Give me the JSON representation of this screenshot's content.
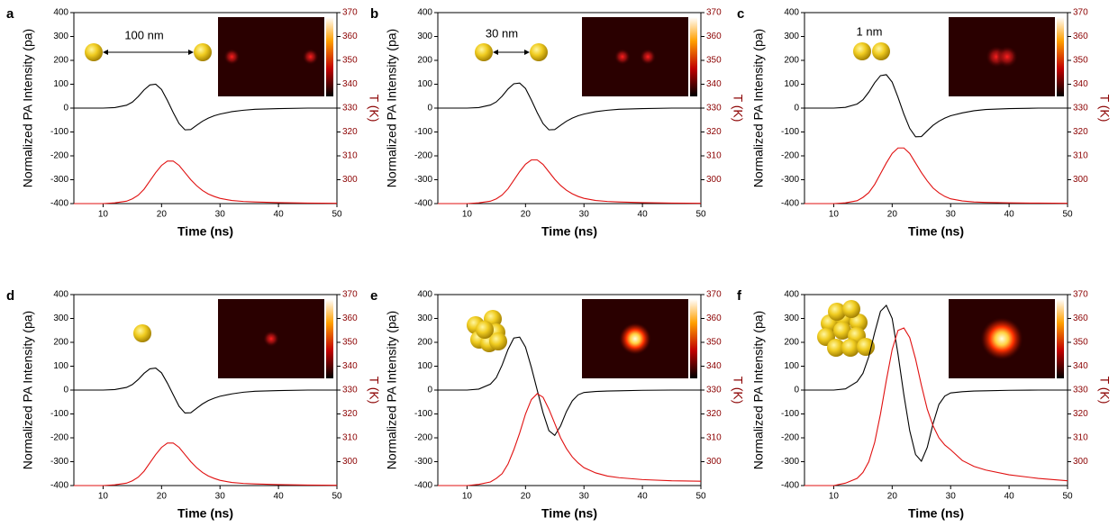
{
  "chart_data": [
    {
      "type": "line",
      "panel": "a",
      "xlabel": "Time (ns)",
      "ylabel": "Normalized PA Intensity (pa)",
      "y2label": "T (K)",
      "annotation": "100 nm",
      "x": [
        5,
        8,
        10,
        12,
        14,
        15,
        16,
        17,
        18,
        19,
        20,
        21,
        22,
        23,
        24,
        25,
        26,
        27,
        28,
        29,
        30,
        32,
        34,
        36,
        40,
        45,
        50
      ],
      "xlim": [
        5,
        50
      ],
      "xticks": [
        10,
        20,
        30,
        40,
        50
      ],
      "ylim": [
        -400,
        400
      ],
      "yticks": [
        -400,
        -300,
        -200,
        -100,
        0,
        100,
        200,
        300,
        400
      ],
      "y2lim": [
        290,
        370
      ],
      "y2ticks": [
        300,
        310,
        320,
        330,
        340,
        350,
        360,
        370
      ],
      "series": [
        {
          "color": "#000000",
          "values": [
            0,
            0,
            0,
            2,
            12,
            25,
            48,
            76,
            97,
            100,
            78,
            32,
            -19,
            -65,
            -91,
            -90,
            -72,
            -55,
            -42,
            -32,
            -25,
            -15,
            -9,
            -5,
            -2,
            0,
            0
          ]
        },
        {
          "color": "#e01010",
          "axis": "y2",
          "values": [
            290,
            290,
            290,
            290.3,
            291,
            292,
            293.5,
            296,
            299.5,
            303,
            306,
            307.8,
            307.8,
            306,
            303,
            300,
            297.5,
            295.5,
            294,
            293,
            292.2,
            291.3,
            290.9,
            290.7,
            290.4,
            290.2,
            290.1
          ]
        }
      ]
    },
    {
      "type": "line",
      "panel": "b",
      "xlabel": "Time (ns)",
      "ylabel": "Normalized PA Intensity (pa)",
      "y2label": "T (K)",
      "annotation": "30 nm",
      "x": [
        5,
        8,
        10,
        12,
        14,
        15,
        16,
        17,
        18,
        19,
        20,
        21,
        22,
        23,
        24,
        25,
        26,
        27,
        28,
        29,
        30,
        32,
        34,
        36,
        40,
        45,
        50
      ],
      "xlim": [
        5,
        50
      ],
      "xticks": [
        10,
        20,
        30,
        40,
        50
      ],
      "ylim": [
        -400,
        400
      ],
      "yticks": [
        -400,
        -300,
        -200,
        -100,
        0,
        100,
        200,
        300,
        400
      ],
      "y2lim": [
        290,
        370
      ],
      "y2ticks": [
        300,
        310,
        320,
        330,
        340,
        350,
        360,
        370
      ],
      "series": [
        {
          "color": "#000000",
          "values": [
            0,
            0,
            0,
            2,
            13,
            26,
            50,
            80,
            102,
            105,
            82,
            34,
            -19,
            -65,
            -91,
            -90,
            -72,
            -55,
            -42,
            -32,
            -25,
            -15,
            -9,
            -5,
            -2,
            0,
            0
          ]
        },
        {
          "color": "#e01010",
          "axis": "y2",
          "values": [
            290,
            290,
            290,
            290.3,
            291,
            292,
            293.6,
            296.2,
            299.8,
            303.4,
            306.5,
            308.3,
            308.3,
            306.4,
            303.3,
            300.2,
            297.6,
            295.6,
            294.1,
            293,
            292.2,
            291.3,
            290.9,
            290.7,
            290.4,
            290.2,
            290.1
          ]
        }
      ]
    },
    {
      "type": "line",
      "panel": "c",
      "xlabel": "Time (ns)",
      "ylabel": "Normalized PA Intensity (pa)",
      "y2label": "T (K)",
      "annotation": "1 nm",
      "x": [
        5,
        8,
        10,
        12,
        14,
        15,
        16,
        17,
        18,
        19,
        20,
        21,
        22,
        23,
        24,
        25,
        26,
        27,
        28,
        29,
        30,
        32,
        34,
        36,
        40,
        45,
        50
      ],
      "xlim": [
        5,
        50
      ],
      "xticks": [
        10,
        20,
        30,
        40,
        50
      ],
      "ylim": [
        -400,
        400
      ],
      "yticks": [
        -400,
        -300,
        -200,
        -100,
        0,
        100,
        200,
        300,
        400
      ],
      "y2lim": [
        290,
        370
      ],
      "y2ticks": [
        300,
        310,
        320,
        330,
        340,
        350,
        360,
        370
      ],
      "series": [
        {
          "color": "#000000",
          "values": [
            0,
            0,
            0,
            3,
            17,
            35,
            67,
            106,
            136,
            140,
            109,
            45,
            -25,
            -85,
            -120,
            -119,
            -95,
            -72,
            -55,
            -42,
            -32,
            -20,
            -11,
            -6,
            -2,
            0,
            0
          ]
        },
        {
          "color": "#e01010",
          "axis": "y2",
          "values": [
            290,
            290,
            290,
            290.3,
            291.2,
            292.6,
            294.6,
            298,
            302.5,
            307,
            311,
            313.3,
            313.3,
            311,
            307,
            303,
            299.5,
            296.5,
            294.5,
            293,
            292,
            291.1,
            290.7,
            290.5,
            290.3,
            290.2,
            290.1
          ]
        }
      ]
    },
    {
      "type": "line",
      "panel": "d",
      "xlabel": "Time (ns)",
      "ylabel": "Normalized PA Intensity (pa)",
      "y2label": "T (K)",
      "x": [
        5,
        8,
        10,
        12,
        14,
        15,
        16,
        17,
        18,
        19,
        20,
        21,
        22,
        23,
        24,
        25,
        26,
        27,
        28,
        29,
        30,
        32,
        34,
        36,
        40,
        45,
        50
      ],
      "xlim": [
        5,
        50
      ],
      "xticks": [
        10,
        20,
        30,
        40,
        50
      ],
      "ylim": [
        -400,
        400
      ],
      "yticks": [
        -400,
        -300,
        -200,
        -100,
        0,
        100,
        200,
        300,
        400
      ],
      "y2lim": [
        290,
        370
      ],
      "y2ticks": [
        300,
        310,
        320,
        330,
        340,
        350,
        360,
        370
      ],
      "series": [
        {
          "color": "#000000",
          "values": [
            0,
            0,
            0,
            2,
            11,
            23,
            44,
            70,
            89,
            92,
            72,
            29,
            -20,
            -68,
            -96,
            -95,
            -76,
            -58,
            -44,
            -34,
            -26,
            -16,
            -9,
            -5,
            -2,
            0,
            0
          ]
        },
        {
          "color": "#e01010",
          "axis": "y2",
          "values": [
            290,
            290,
            290,
            290.3,
            291,
            292,
            293.5,
            296,
            299.5,
            303,
            306,
            307.8,
            307.8,
            306,
            303,
            300,
            297.5,
            295.5,
            294,
            293,
            292.2,
            291.3,
            290.9,
            290.7,
            290.4,
            290.2,
            290.1
          ]
        }
      ]
    },
    {
      "type": "line",
      "panel": "e",
      "xlabel": "Time (ns)",
      "ylabel": "Normalized PA Intensity (pa)",
      "y2label": "T (K)",
      "x": [
        5,
        8,
        10,
        12,
        14,
        15,
        16,
        17,
        18,
        19,
        20,
        21,
        22,
        23,
        24,
        25,
        26,
        27,
        28,
        29,
        30,
        32,
        34,
        36,
        40,
        45,
        50
      ],
      "xlim": [
        5,
        50
      ],
      "xticks": [
        10,
        20,
        30,
        40,
        50
      ],
      "ylim": [
        -400,
        400
      ],
      "yticks": [
        -400,
        -300,
        -200,
        -100,
        0,
        100,
        200,
        300,
        400
      ],
      "y2lim": [
        290,
        370
      ],
      "y2ticks": [
        300,
        310,
        320,
        330,
        340,
        350,
        360,
        370
      ],
      "series": [
        {
          "color": "#000000",
          "values": [
            0,
            0,
            0,
            4,
            25,
            52,
            105,
            170,
            218,
            222,
            180,
            95,
            0,
            -95,
            -170,
            -190,
            -150,
            -90,
            -45,
            -20,
            -10,
            -6,
            -4,
            -3,
            -1,
            0,
            0
          ]
        },
        {
          "color": "#e01010",
          "axis": "y2",
          "values": [
            290,
            290,
            290,
            290.5,
            291.5,
            293,
            295,
            299,
            305,
            312,
            320,
            326,
            328.5,
            327,
            322,
            316,
            310,
            305.5,
            302,
            299.5,
            297.5,
            295.3,
            294,
            293.3,
            292.5,
            292,
            291.8
          ]
        }
      ]
    },
    {
      "type": "line",
      "panel": "f",
      "xlabel": "Time (ns)",
      "ylabel": "Normalized PA Intensity (pa)",
      "y2label": "T (K)",
      "x": [
        5,
        8,
        10,
        12,
        14,
        15,
        16,
        17,
        18,
        19,
        20,
        21,
        22,
        23,
        24,
        25,
        26,
        27,
        28,
        29,
        30,
        32,
        34,
        36,
        40,
        45,
        50
      ],
      "xlim": [
        5,
        50
      ],
      "xticks": [
        10,
        20,
        30,
        40,
        50
      ],
      "ylim": [
        -400,
        400
      ],
      "yticks": [
        -400,
        -300,
        -200,
        -100,
        0,
        100,
        200,
        300,
        400
      ],
      "y2lim": [
        290,
        370
      ],
      "y2ticks": [
        300,
        310,
        320,
        330,
        340,
        350,
        360,
        370
      ],
      "series": [
        {
          "color": "#000000",
          "values": [
            0,
            0,
            0,
            5,
            35,
            70,
            140,
            240,
            330,
            355,
            300,
            150,
            -20,
            -170,
            -270,
            -298,
            -240,
            -140,
            -60,
            -25,
            -12,
            -7,
            -4,
            -3,
            -1,
            0,
            0
          ]
        },
        {
          "color": "#e01010",
          "axis": "y2",
          "values": [
            290,
            290,
            290,
            291,
            293,
            295.5,
            300,
            308,
            320,
            334,
            347,
            355,
            356,
            352,
            343,
            332,
            322,
            315,
            310,
            307,
            305,
            300.5,
            298,
            296.5,
            294.5,
            293,
            292
          ]
        }
      ]
    }
  ]
}
